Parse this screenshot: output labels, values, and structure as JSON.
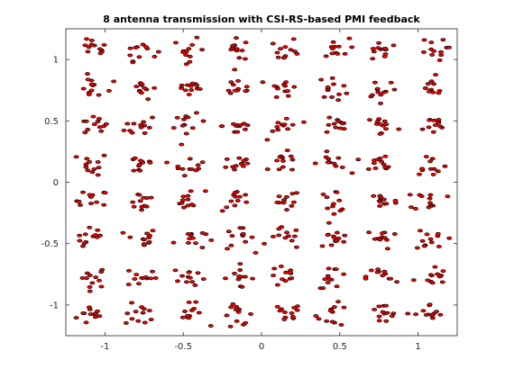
{
  "chart_data": {
    "type": "scatter",
    "title": "8 antenna transmission with CSI-RS-based PMI feedback",
    "xlabel": "",
    "ylabel": "",
    "xlim": [
      -1.25,
      1.25
    ],
    "ylim": [
      -1.25,
      1.25
    ],
    "x_ticks": [
      -1,
      -0.5,
      0,
      0.5,
      1
    ],
    "x_tick_labels": [
      "-1",
      "-0.5",
      "0",
      "0.5",
      "1"
    ],
    "y_ticks": [
      -1,
      -0.5,
      0,
      0.5,
      1
    ],
    "y_tick_labels": [
      "-1",
      "-0.5",
      "0",
      "0.5",
      "1"
    ],
    "grid": false,
    "legend": "none",
    "marker": "ellipse",
    "marker_edge_color": "#000000",
    "marker_face_color": "#ff0000",
    "constellation": "64QAM",
    "cluster_centers_x": [
      -1.08,
      -0.77,
      -0.46,
      -0.15,
      0.15,
      0.46,
      0.77,
      1.08
    ],
    "cluster_centers_y": [
      -1.08,
      -0.77,
      -0.46,
      -0.15,
      0.15,
      0.46,
      0.77,
      1.08
    ],
    "points_per_cluster": 12,
    "cluster_spread": 0.05
  }
}
